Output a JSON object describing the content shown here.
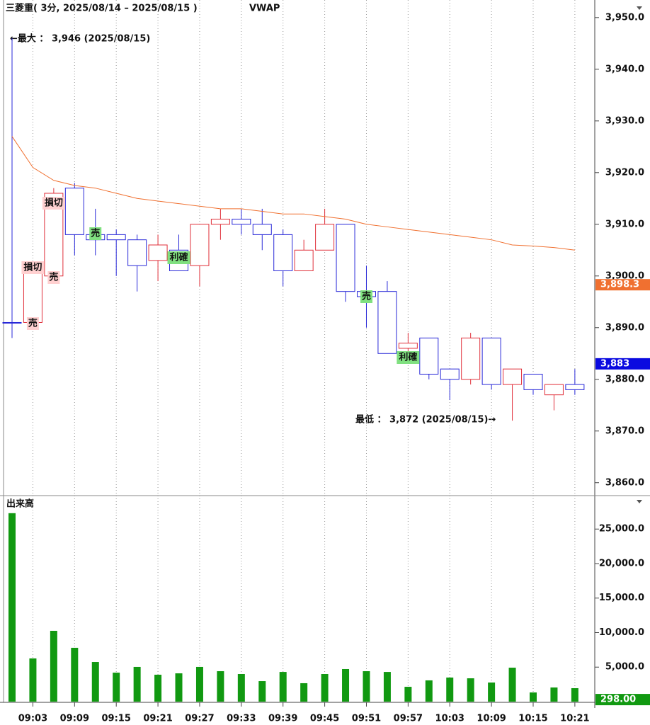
{
  "chart_data": [
    {
      "type": "candlestick",
      "title": "三菱重( 3分, 2025/08/14 – 2025/08/15 )",
      "indicator": "VWAP",
      "categories": [
        null,
        "09:03",
        null,
        "09:09",
        null,
        "09:15",
        null,
        "09:21",
        null,
        "09:27",
        null,
        "09:33",
        null,
        "09:39",
        null,
        "09:45",
        null,
        "09:51",
        null,
        "09:57",
        null,
        "10:03",
        null,
        "10:09",
        null,
        "10:15",
        null,
        "10:21"
      ],
      "open": [
        3891,
        3891,
        3900,
        3917,
        3908,
        3908,
        3907,
        3903,
        3905,
        3902,
        3910,
        3911,
        3910,
        3908,
        3901,
        3905,
        3910,
        3897,
        3897,
        3886,
        3888,
        3882,
        3880,
        3888,
        3879,
        3881,
        3877,
        3879
      ],
      "high": [
        3946,
        3902,
        3917,
        3918,
        3913,
        3909,
        3908,
        3908,
        3908,
        3910,
        3913,
        3913,
        3913,
        3909,
        3907,
        3913,
        3910,
        3902,
        3899,
        3889,
        3888,
        3882,
        3889,
        3888,
        3882,
        3881,
        3879,
        3882
      ],
      "low": [
        3888,
        3890,
        3900,
        3904,
        3904,
        3900,
        3897,
        3899,
        3901,
        3898,
        3907,
        3908,
        3905,
        3898,
        3901,
        3905,
        3895,
        3890,
        3885,
        3884,
        3880,
        3876,
        3879,
        3878,
        3872,
        3877,
        3874,
        3877
      ],
      "close": [
        3891,
        3901,
        3916,
        3908,
        3907,
        3907,
        3902,
        3906,
        3901,
        3910,
        3911,
        3910,
        3908,
        3901,
        3905,
        3910,
        3897,
        3896,
        3885,
        3887,
        3881,
        3880,
        3888,
        3879,
        3882,
        3878,
        3879,
        3878
      ],
      "up_color": "#e0303a",
      "down_color": "#2828d8",
      "vwap": {
        "name": "VWAP",
        "color": "#f07030",
        "values": [
          3927,
          3921,
          3918.5,
          3917.5,
          3917,
          3916,
          3915,
          3914.5,
          3914,
          3913.5,
          3913,
          3913,
          3912.5,
          3912,
          3912,
          3911.5,
          3911,
          3910,
          3909.5,
          3909,
          3908.5,
          3908,
          3907.5,
          3907,
          3906,
          3905.8,
          3905.5,
          3905
        ]
      },
      "ylim": [
        3857.5,
        3953.4
      ],
      "yticks": [
        {
          "value": 3950,
          "label": "3,950.0"
        },
        {
          "value": 3940,
          "label": "3,940.0"
        },
        {
          "value": 3930,
          "label": "3,930.0"
        },
        {
          "value": 3920,
          "label": "3,920.0"
        },
        {
          "value": 3910,
          "label": "3,910.0"
        },
        {
          "value": 3900,
          "label": "3,900.0"
        },
        {
          "value": 3890,
          "label": "3,890.0"
        },
        {
          "value": 3880,
          "label": "3,880.0"
        },
        {
          "value": 3870,
          "label": "3,870.0"
        },
        {
          "value": 3860,
          "label": "3,860.0"
        }
      ],
      "price_tags": [
        {
          "value": 3898.3,
          "label": "3,898.3",
          "color": "#f07030"
        },
        {
          "value": 3883,
          "label": "3,883",
          "color": "#0a0ae0"
        }
      ],
      "max_label": "←最大 ： 3,946 (2025/08/15)",
      "min_label": "最低 ： 3,872 (2025/08/15)→",
      "annotations": [
        "損切",
        "損切",
        "売",
        "売",
        "売",
        "利確",
        "売",
        "利確"
      ]
    },
    {
      "type": "bar",
      "title": "出来高",
      "values": [
        27300,
        6260,
        10260,
        7800,
        5740,
        4200,
        5030,
        3900,
        4100,
        5030,
        4410,
        4000,
        2970,
        4300,
        2670,
        4000,
        4720,
        4410,
        4300,
        2150,
        3080,
        3490,
        3380,
        2770,
        4920,
        1330,
        2050,
        1950
      ],
      "color": "#119911",
      "ylim": [
        0,
        29846
      ],
      "yticks": [
        {
          "value": 25000,
          "label": "25,000.0"
        },
        {
          "value": 20000,
          "label": "20,000.0"
        },
        {
          "value": 15000,
          "label": "15,000.0"
        },
        {
          "value": 10000,
          "label": "10,000.0"
        },
        {
          "value": 5000,
          "label": "5,000.0"
        }
      ],
      "price_tags": [
        {
          "value": 298,
          "label": "298.00",
          "color": "#119911"
        }
      ]
    }
  ]
}
